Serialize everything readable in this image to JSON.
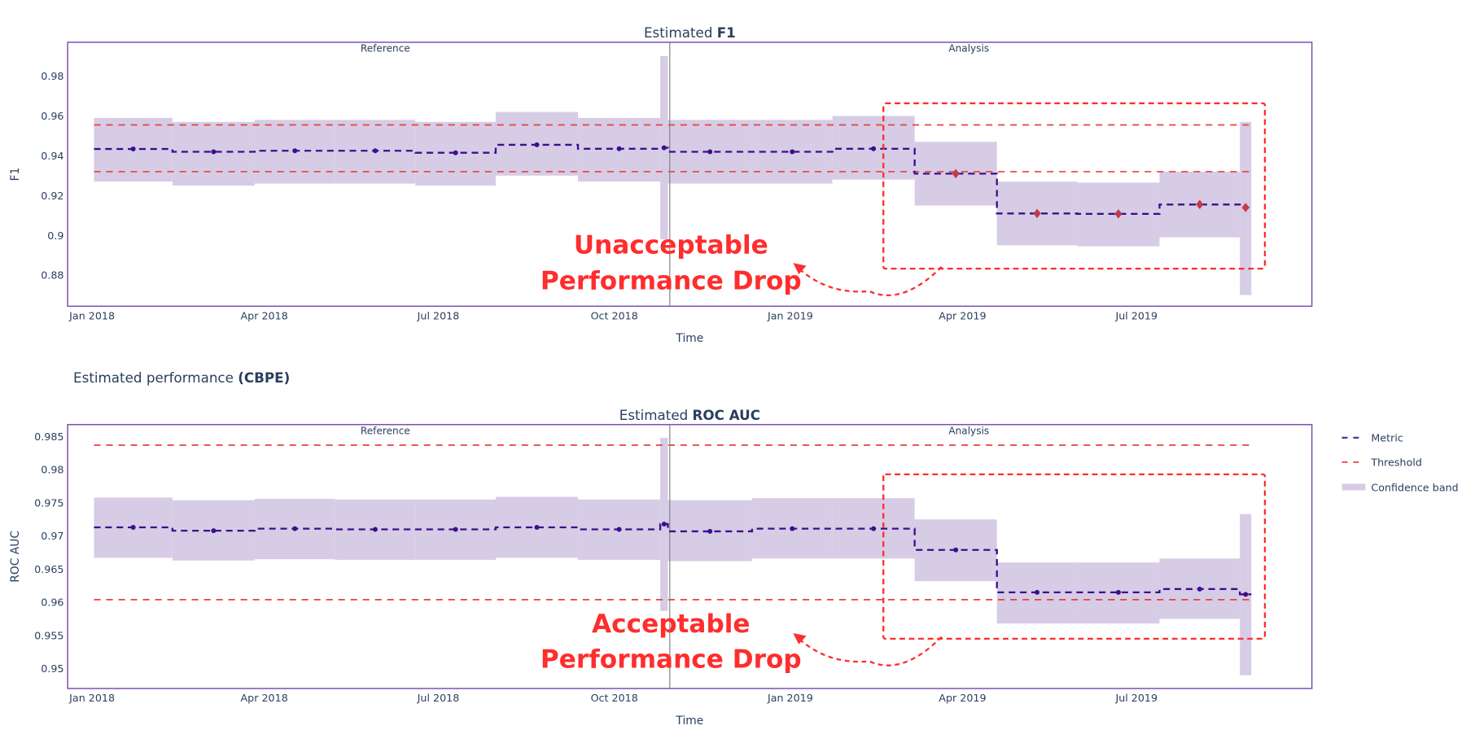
{
  "section_title": {
    "prefix": "Estimated performance ",
    "bold": "(CBPE)"
  },
  "legend": {
    "metric": "Metric",
    "threshold": "Threshold",
    "confidence_band": "Confidence band"
  },
  "colors": {
    "metric": "#3b0f8c",
    "threshold": "#e8403f",
    "band": "#d7cce6",
    "alert": "#c23b4a",
    "frame": "#7952b3",
    "annotation": "#ff2d2d",
    "divider": "#808080"
  },
  "chart_data": [
    {
      "type": "line",
      "title_prefix": "Estimated ",
      "title_bold": "F1",
      "xlabel": "Time",
      "ylabel": "F1",
      "ylim": [
        0.8644,
        0.997
      ],
      "yticks": [
        0.88,
        0.9,
        0.92,
        0.94,
        0.96,
        0.98
      ],
      "ytick_labels": [
        "0.88",
        "0.9",
        "0.92",
        "0.94",
        "0.96",
        "0.98"
      ],
      "xticks": [
        "2018-01-01",
        "2018-04-01",
        "2018-07-01",
        "2018-10-01",
        "2019-01-01",
        "2019-04-01",
        "2019-07-01"
      ],
      "xtick_labels": [
        "Jan 2018",
        "Apr 2018",
        "Jul 2018",
        "Oct 2018",
        "Jan 2019",
        "Apr 2019",
        "Jul 2019"
      ],
      "period_labels": {
        "reference": "Reference",
        "analysis": "Analysis"
      },
      "thresholds": {
        "upper": 0.9555,
        "lower": 0.932
      },
      "chunks": [
        {
          "start": "2018-01-02",
          "end": "2018-02-12",
          "value": 0.9434,
          "upper": 0.959,
          "lower": 0.927,
          "alert": false
        },
        {
          "start": "2018-02-12",
          "end": "2018-03-27",
          "value": 0.942,
          "upper": 0.957,
          "lower": 0.925,
          "alert": false
        },
        {
          "start": "2018-03-27",
          "end": "2018-05-08",
          "value": 0.9425,
          "upper": 0.958,
          "lower": 0.926,
          "alert": false
        },
        {
          "start": "2018-05-08",
          "end": "2018-06-19",
          "value": 0.9425,
          "upper": 0.958,
          "lower": 0.926,
          "alert": false
        },
        {
          "start": "2018-06-19",
          "end": "2018-07-31",
          "value": 0.9415,
          "upper": 0.957,
          "lower": 0.925,
          "alert": false
        },
        {
          "start": "2018-07-31",
          "end": "2018-09-12",
          "value": 0.9455,
          "upper": 0.962,
          "lower": 0.93,
          "alert": false
        },
        {
          "start": "2018-09-12",
          "end": "2018-10-25",
          "value": 0.9435,
          "upper": 0.959,
          "lower": 0.927,
          "alert": false
        },
        {
          "start": "2018-10-25",
          "end": "2018-10-29",
          "value": 0.944,
          "upper": 0.99,
          "lower": 0.898,
          "alert": false
        },
        {
          "start": "2018-10-29",
          "end": "2018-12-12",
          "value": 0.942,
          "upper": 0.958,
          "lower": 0.926,
          "alert": false
        },
        {
          "start": "2018-12-12",
          "end": "2019-01-23",
          "value": 0.942,
          "upper": 0.958,
          "lower": 0.926,
          "alert": false
        },
        {
          "start": "2019-01-23",
          "end": "2019-03-07",
          "value": 0.9435,
          "upper": 0.96,
          "lower": 0.928,
          "alert": false
        },
        {
          "start": "2019-03-07",
          "end": "2019-04-19",
          "value": 0.931,
          "upper": 0.947,
          "lower": 0.915,
          "alert": true
        },
        {
          "start": "2019-04-19",
          "end": "2019-05-31",
          "value": 0.911,
          "upper": 0.927,
          "lower": 0.895,
          "alert": true
        },
        {
          "start": "2019-05-31",
          "end": "2019-07-13",
          "value": 0.9108,
          "upper": 0.9265,
          "lower": 0.8945,
          "alert": true
        },
        {
          "start": "2019-07-13",
          "end": "2019-08-24",
          "value": 0.9155,
          "upper": 0.932,
          "lower": 0.899,
          "alert": true
        },
        {
          "start": "2019-08-24",
          "end": "2019-08-30",
          "value": 0.914,
          "upper": 0.957,
          "lower": 0.87,
          "alert": true
        }
      ],
      "annotation": {
        "line1": "Unacceptable",
        "line2": "Performance Drop"
      }
    },
    {
      "type": "line",
      "title_prefix": "Estimated ",
      "title_bold": "ROC AUC",
      "xlabel": "Time",
      "ylabel": "ROC AUC",
      "ylim": [
        0.947,
        0.9868
      ],
      "yticks": [
        0.95,
        0.955,
        0.96,
        0.965,
        0.97,
        0.975,
        0.98,
        0.985
      ],
      "ytick_labels": [
        "0.95",
        "0.955",
        "0.96",
        "0.965",
        "0.97",
        "0.975",
        "0.98",
        "0.985"
      ],
      "xticks": [
        "2018-01-01",
        "2018-04-01",
        "2018-07-01",
        "2018-10-01",
        "2019-01-01",
        "2019-04-01",
        "2019-07-01"
      ],
      "xtick_labels": [
        "Jan 2018",
        "Apr 2018",
        "Jul 2018",
        "Oct 2018",
        "Jan 2019",
        "Apr 2019",
        "Jul 2019"
      ],
      "period_labels": {
        "reference": "Reference",
        "analysis": "Analysis"
      },
      "thresholds": {
        "upper": 0.9837,
        "lower": 0.9604
      },
      "chunks": [
        {
          "start": "2018-01-02",
          "end": "2018-02-12",
          "value": 0.9713,
          "upper": 0.9758,
          "lower": 0.9667,
          "alert": false
        },
        {
          "start": "2018-02-12",
          "end": "2018-03-27",
          "value": 0.9708,
          "upper": 0.9754,
          "lower": 0.9663,
          "alert": false
        },
        {
          "start": "2018-03-27",
          "end": "2018-05-08",
          "value": 0.9711,
          "upper": 0.9756,
          "lower": 0.9665,
          "alert": false
        },
        {
          "start": "2018-05-08",
          "end": "2018-06-19",
          "value": 0.971,
          "upper": 0.9755,
          "lower": 0.9664,
          "alert": false
        },
        {
          "start": "2018-06-19",
          "end": "2018-07-31",
          "value": 0.971,
          "upper": 0.9755,
          "lower": 0.9664,
          "alert": false
        },
        {
          "start": "2018-07-31",
          "end": "2018-09-12",
          "value": 0.9713,
          "upper": 0.9759,
          "lower": 0.9667,
          "alert": false
        },
        {
          "start": "2018-09-12",
          "end": "2018-10-25",
          "value": 0.971,
          "upper": 0.9755,
          "lower": 0.9664,
          "alert": false
        },
        {
          "start": "2018-10-25",
          "end": "2018-10-29",
          "value": 0.9718,
          "upper": 0.9848,
          "lower": 0.9587,
          "alert": false
        },
        {
          "start": "2018-10-29",
          "end": "2018-12-12",
          "value": 0.9707,
          "upper": 0.9754,
          "lower": 0.9662,
          "alert": false
        },
        {
          "start": "2018-12-12",
          "end": "2019-01-23",
          "value": 0.9711,
          "upper": 0.9757,
          "lower": 0.9666,
          "alert": false
        },
        {
          "start": "2019-01-23",
          "end": "2019-03-07",
          "value": 0.9711,
          "upper": 0.9757,
          "lower": 0.9666,
          "alert": false
        },
        {
          "start": "2019-03-07",
          "end": "2019-04-19",
          "value": 0.9679,
          "upper": 0.9725,
          "lower": 0.9632,
          "alert": false
        },
        {
          "start": "2019-04-19",
          "end": "2019-05-31",
          "value": 0.9615,
          "upper": 0.966,
          "lower": 0.9568,
          "alert": false
        },
        {
          "start": "2019-05-31",
          "end": "2019-07-13",
          "value": 0.9615,
          "upper": 0.966,
          "lower": 0.9568,
          "alert": false
        },
        {
          "start": "2019-07-13",
          "end": "2019-08-24",
          "value": 0.962,
          "upper": 0.9666,
          "lower": 0.9575,
          "alert": false
        },
        {
          "start": "2019-08-24",
          "end": "2019-08-30",
          "value": 0.9612,
          "upper": 0.9733,
          "lower": 0.949,
          "alert": false
        }
      ],
      "annotation": {
        "line1": "Acceptable",
        "line2": "Performance Drop"
      }
    }
  ]
}
